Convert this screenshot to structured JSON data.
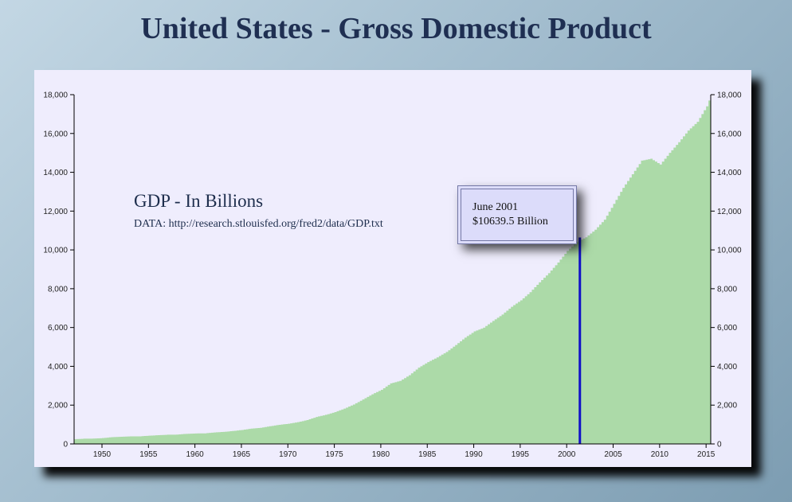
{
  "page": {
    "title": "United States - Gross Domestic Product"
  },
  "chart": {
    "heading": "GDP - In Billions",
    "source": "DATA: http://research.stlouisfed.org/fred2/data/GDP.txt"
  },
  "tooltip": {
    "date": "June 2001",
    "value": "$10639.5 Billion"
  },
  "colors": {
    "area": "#acdaa8",
    "marker": "#1010c8",
    "panel": "#efedfd",
    "title": "#1f2f52"
  },
  "chart_data": {
    "type": "area",
    "xlabel": "",
    "ylabel": "",
    "xlim": [
      1947,
      2015.5
    ],
    "ylim": [
      0,
      18000
    ],
    "x_ticks": [
      1950,
      1955,
      1960,
      1965,
      1970,
      1975,
      1980,
      1985,
      1990,
      1995,
      2000,
      2005,
      2010,
      2015
    ],
    "y_ticks": [
      0,
      2000,
      4000,
      6000,
      8000,
      10000,
      12000,
      14000,
      16000,
      18000
    ],
    "y_tick_labels": [
      "0",
      "2,000",
      "4,000",
      "6,000",
      "8,000",
      "10,000",
      "12,000",
      "14,000",
      "16,000",
      "18,000"
    ],
    "y_axes": "both",
    "marker": {
      "x": 2001.42,
      "y": 10639.5,
      "label": "June 2001"
    },
    "series": [
      {
        "x": [
          1947,
          1948,
          1949,
          1950,
          1951,
          1952,
          1953,
          1954,
          1955,
          1956,
          1957,
          1958,
          1959,
          1960,
          1961,
          1962,
          1963,
          1964,
          1965,
          1966,
          1967,
          1968,
          1969,
          1970,
          1971,
          1972,
          1973,
          1974,
          1975,
          1976,
          1977,
          1978,
          1979,
          1980,
          1981,
          1982,
          1983,
          1984,
          1985,
          1986,
          1987,
          1988,
          1989,
          1990,
          1991,
          1992,
          1993,
          1994,
          1995,
          1996,
          1997,
          1998,
          1999,
          2000,
          2001,
          2002,
          2003,
          2004,
          2005,
          2006,
          2007,
          2008,
          2009,
          2010,
          2011,
          2012,
          2013,
          2014,
          2015,
          2015.5
        ],
        "values": [
          243,
          270,
          275,
          300,
          350,
          370,
          390,
          390,
          425,
          450,
          475,
          480,
          520,
          540,
          545,
          590,
          620,
          665,
          720,
          790,
          830,
          910,
          985,
          1040,
          1120,
          1230,
          1390,
          1500,
          1640,
          1820,
          2030,
          2290,
          2560,
          2790,
          3120,
          3250,
          3540,
          3930,
          4220,
          4460,
          4740,
          5100,
          5480,
          5800,
          5990,
          6340,
          6670,
          7070,
          7400,
          7820,
          8330,
          8800,
          9350,
          9950,
          10400,
          10650,
          11040,
          11560,
          12370,
          13200,
          13900,
          14600,
          14700,
          14400,
          15000,
          15550,
          16150,
          16600,
          17400,
          18000
        ]
      }
    ]
  }
}
